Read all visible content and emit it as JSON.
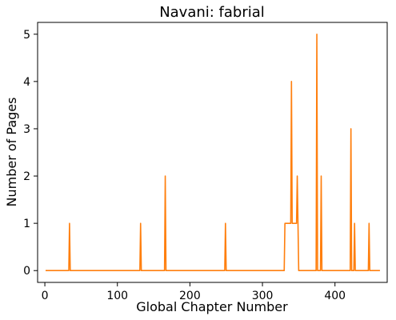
{
  "chart_data": {
    "type": "line",
    "title": "Navani: fabrial",
    "xlabel": "Global Chapter Number",
    "ylabel": "Number of Pages",
    "xlim": [
      -10,
      472
    ],
    "ylim": [
      -0.25,
      5.25
    ],
    "xticks": [
      0,
      100,
      200,
      300,
      400
    ],
    "yticks": [
      0,
      1,
      2,
      3,
      4,
      5
    ],
    "grid": false,
    "color": "#ff7f0e",
    "series": [
      {
        "x": [
          1,
          33,
          34,
          35,
          131,
          132,
          133,
          165,
          166,
          167,
          248,
          249,
          250,
          330,
          331,
          339,
          340,
          341,
          347,
          348,
          349,
          350,
          374,
          375,
          376,
          380,
          381,
          382,
          421,
          422,
          423,
          426,
          427,
          428,
          446,
          447,
          448,
          462
        ],
        "y": [
          0,
          0,
          1,
          0,
          0,
          1,
          0,
          0,
          2,
          0,
          0,
          1,
          0,
          0,
          1,
          1,
          4,
          1,
          1,
          2,
          1,
          0,
          0,
          5,
          0,
          0,
          2,
          0,
          0,
          3,
          0,
          0,
          1,
          0,
          0,
          1,
          0,
          0
        ]
      }
    ]
  }
}
